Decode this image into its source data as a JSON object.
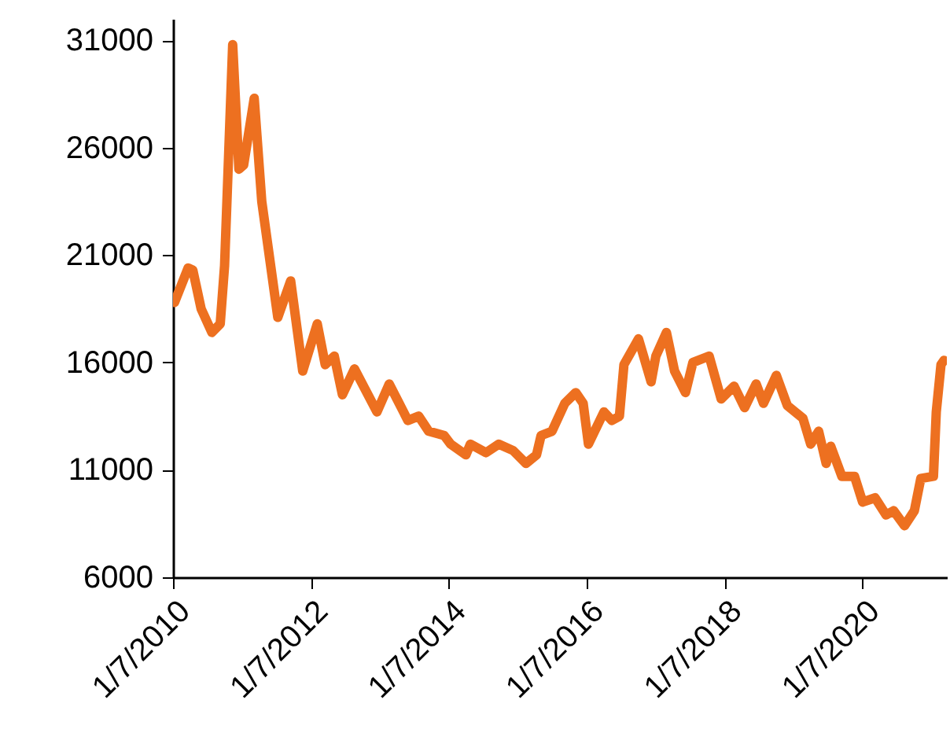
{
  "chart_data": {
    "type": "line",
    "x": [
      "2010-01-15",
      "2010-03-28",
      "2010-04-22",
      "2010-06-05",
      "2010-08-01",
      "2010-09-14",
      "2010-10-07",
      "2010-11-19",
      "2010-12-22",
      "2011-01-16",
      "2011-03-13",
      "2011-04-22",
      "2011-07-16",
      "2011-09-22",
      "2011-11-25",
      "2012-02-10",
      "2012-03-23",
      "2012-05-10",
      "2012-06-22",
      "2012-08-25",
      "2012-12-22",
      "2013-02-25",
      "2013-06-04",
      "2013-07-31",
      "2013-09-22",
      "2013-12-13",
      "2014-01-16",
      "2014-04-07",
      "2014-05-01",
      "2014-07-22",
      "2014-09-28",
      "2014-12-13",
      "2015-02-19",
      "2015-04-16",
      "2015-05-10",
      "2015-07-07",
      "2015-09-13",
      "2015-11-10",
      "2015-12-19",
      "2016-01-16",
      "2016-04-07",
      "2016-05-19",
      "2016-06-28",
      "2016-07-22",
      "2016-10-07",
      "2016-12-13",
      "2017-01-07",
      "2017-03-04",
      "2017-04-16",
      "2017-06-13",
      "2017-07-22",
      "2017-10-16",
      "2017-12-19",
      "2018-02-25",
      "2018-04-22",
      "2018-06-22",
      "2018-07-31",
      "2018-10-07",
      "2018-12-04",
      "2019-02-25",
      "2019-04-07",
      "2019-05-19",
      "2019-06-28",
      "2019-07-22",
      "2019-09-19",
      "2019-11-25",
      "2020-01-07",
      "2020-03-13",
      "2020-05-10",
      "2020-06-19",
      "2020-08-16",
      "2020-10-07",
      "2020-11-10",
      "2021-01-16",
      "2021-01-31",
      "2021-02-25",
      "2021-03-13"
    ],
    "series": [
      {
        "color": "#ed7020",
        "values": [
          18800,
          20400,
          20300,
          18500,
          17400,
          17800,
          20500,
          30800,
          25000,
          25200,
          28300,
          23500,
          18100,
          19800,
          15600,
          17800,
          15900,
          16300,
          14500,
          15700,
          13700,
          15000,
          13300,
          13500,
          12800,
          12600,
          12200,
          11700,
          12200,
          11800,
          12200,
          11900,
          11300,
          11700,
          12600,
          12800,
          14100,
          14600,
          14100,
          12200,
          13700,
          13300,
          13500,
          15900,
          17100,
          15100,
          16300,
          17400,
          15600,
          14600,
          16000,
          16300,
          14300,
          14900,
          13900,
          15000,
          14100,
          15400,
          14000,
          13400,
          12200,
          12800,
          11300,
          12100,
          10700,
          10700,
          9500,
          9700,
          8900,
          9100,
          8400,
          9100,
          10600,
          10700,
          13700,
          15900,
          16100
        ]
      }
    ],
    "xlim": [
      "2010-01-07",
      "2021-03-28"
    ],
    "xticks": [
      {
        "value": "2010-01-07",
        "label": "1/7/2010"
      },
      {
        "value": "2012-01-07",
        "label": "1/7/2012"
      },
      {
        "value": "2014-01-07",
        "label": "1/7/2014"
      },
      {
        "value": "2016-01-07",
        "label": "1/7/2016"
      },
      {
        "value": "2018-01-07",
        "label": "1/7/2018"
      },
      {
        "value": "2020-01-07",
        "label": "1/7/2020"
      }
    ],
    "ylim": [
      6000,
      32000
    ],
    "yticks": [
      6000,
      11000,
      16000,
      21000,
      26000,
      31000
    ],
    "grid": false,
    "marker": "none",
    "line_style": "solid"
  }
}
